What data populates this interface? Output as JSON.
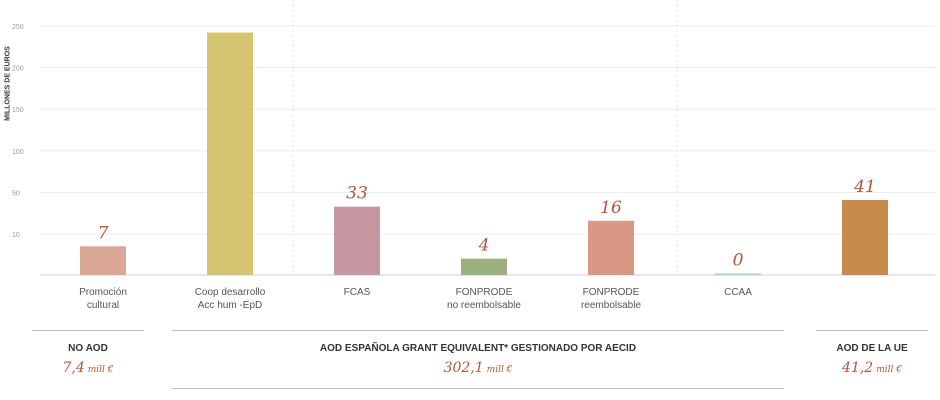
{
  "chart_data": {
    "type": "bar",
    "ylabel": "MILLONES DE EUROS",
    "yticks": [
      10,
      50,
      100,
      150,
      200,
      250
    ],
    "ylim": [
      0,
      280
    ],
    "categories": [
      {
        "line1": "Promoción",
        "line2": "cultural"
      },
      {
        "line1": "Coop desarrollo",
        "line2": "Acc hum -EpD"
      },
      {
        "line1": "FCAS",
        "line2": ""
      },
      {
        "line1": "FONPRODE",
        "line2": "no reembolsable"
      },
      {
        "line1": "FONPRODE",
        "line2": "reembolsable"
      },
      {
        "line1": "CCAA",
        "line2": ""
      },
      {
        "line1": "",
        "line2": ""
      }
    ],
    "values": [
      7,
      242,
      33,
      4,
      16,
      0,
      41
    ],
    "value_labels": [
      "7",
      "",
      "33",
      "4",
      "16",
      "0",
      "41"
    ],
    "colors": [
      "#dba896",
      "#d5c572",
      "#c597a3",
      "#9bb07e",
      "#d99884",
      "#a8d2cd",
      "#c78b4c"
    ],
    "grid": true
  },
  "sections": [
    {
      "title": "NO AOD",
      "value": "7,4",
      "unit": "mill €"
    },
    {
      "title": "AOD ESPAÑOLA GRANT EQUIVALENT* GESTIONADO POR AECID",
      "value": "302,1",
      "unit": "mill €"
    },
    {
      "title": "AOD DE LA UE",
      "value": "41,2",
      "unit": "mill €"
    }
  ]
}
